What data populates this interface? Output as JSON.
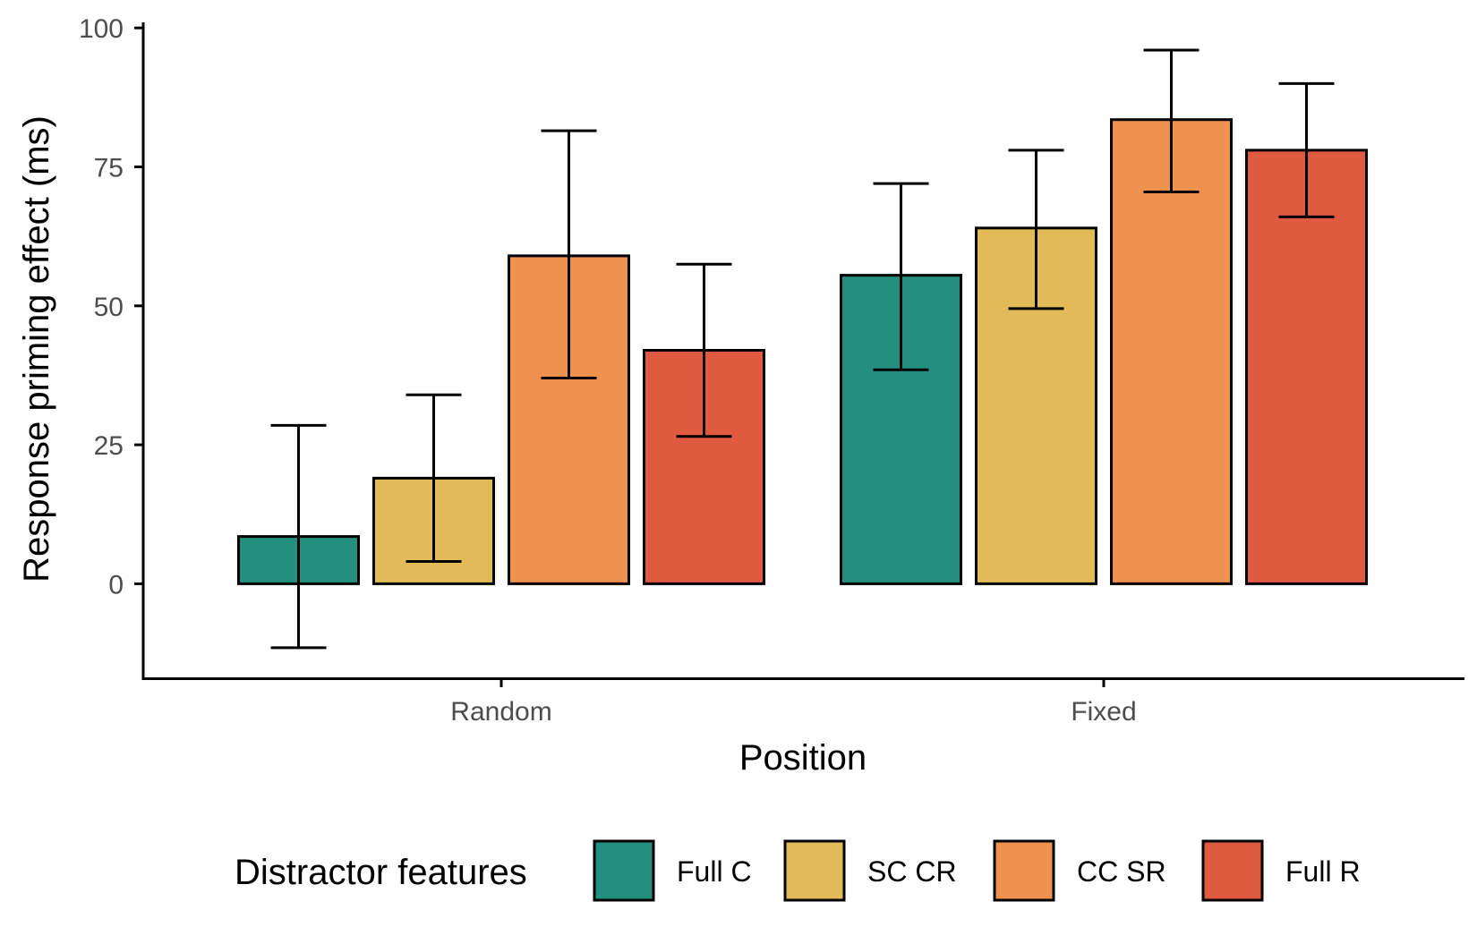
{
  "chart_data": {
    "type": "bar",
    "title": "",
    "xlabel": "Position",
    "ylabel": "Response priming effect (ms)",
    "categories": [
      "Random",
      "Fixed"
    ],
    "ylim": [
      -17,
      101
    ],
    "yticks": [
      0,
      25,
      50,
      75,
      100
    ],
    "grid": false,
    "legend_position": "bottom",
    "legend_title": "Distractor features",
    "series": [
      {
        "name": "Full C",
        "color": "#248F7E",
        "values": [
          8.5,
          55.5
        ],
        "error_low": [
          -11.5,
          38.5
        ],
        "error_high": [
          28.5,
          72
        ]
      },
      {
        "name": "SC CR",
        "color": "#E2BA57",
        "values": [
          19,
          64
        ],
        "error_low": [
          4,
          49.5
        ],
        "error_high": [
          34,
          78
        ]
      },
      {
        "name": "CC SR",
        "color": "#EF914F",
        "values": [
          59,
          83.5
        ],
        "error_low": [
          37,
          70.5
        ],
        "error_high": [
          81.5,
          96
        ]
      },
      {
        "name": "Full R",
        "color": "#DF5A40",
        "values": [
          42,
          78
        ],
        "error_low": [
          26.5,
          66
        ],
        "error_high": [
          57.5,
          90
        ]
      }
    ]
  }
}
